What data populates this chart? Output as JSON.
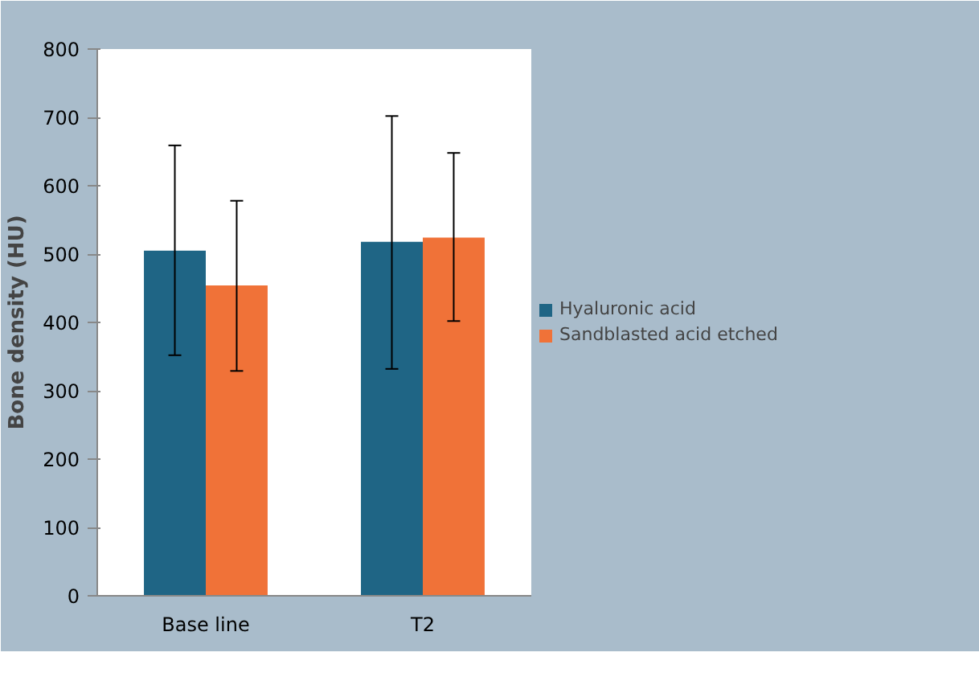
{
  "chart_data": {
    "type": "bar",
    "ylabel": "Bone density (HU)",
    "categories": [
      "Base line",
      "T2"
    ],
    "series": [
      {
        "name": "Hyaluronic acid",
        "color": "#1f6585",
        "values": [
          505,
          518
        ],
        "errors": [
          [
            352,
            659
          ],
          [
            332,
            702
          ]
        ]
      },
      {
        "name": "Sandblasted acid etched",
        "color": "#f07238",
        "values": [
          454,
          524
        ],
        "errors": [
          [
            329,
            578
          ],
          [
            402,
            648
          ]
        ]
      }
    ],
    "ylim": [
      0,
      800
    ],
    "yticks": [
      0,
      100,
      200,
      300,
      400,
      500,
      600,
      700,
      800
    ],
    "grid": false,
    "legend": "right"
  }
}
